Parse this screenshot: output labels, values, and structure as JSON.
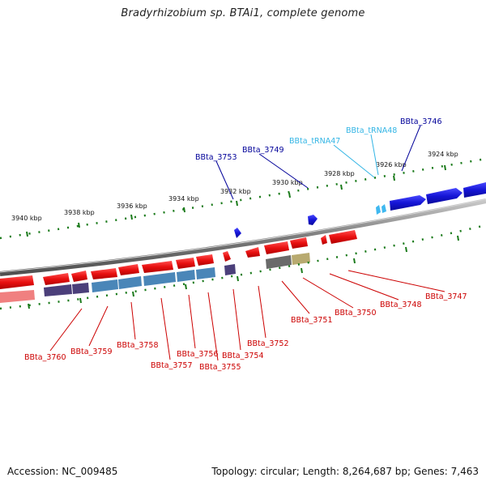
{
  "title": "Bradyrhizobium sp. BTAi1, complete genome",
  "footer": {
    "accession": "Accession: NC_009485",
    "summary": "Topology: circular; Length: 8,264,687 bp; Genes: 7,463"
  },
  "colors": {
    "forward_gene": "#1515d6",
    "reverse_gene": "#e01010",
    "trna": "#3fb8f0",
    "tick": "#1a7a1a",
    "backbone": "#8a8a8a"
  },
  "kbp_ticks": [
    "3940 kbp",
    "3938 kbp",
    "3936 kbp",
    "3934 kbp",
    "3932 kbp",
    "3930 kbp",
    "3928 kbp",
    "3926 kbp",
    "3924 kbp"
  ],
  "top_labels": [
    {
      "text": "BBta_3753",
      "color": "#000099"
    },
    {
      "text": "BBta_3749",
      "color": "#000099"
    },
    {
      "text": "BBta_tRNA47",
      "color": "#33b5e5"
    },
    {
      "text": "BBta_tRNA48",
      "color": "#33b5e5"
    },
    {
      "text": "BBta_3746",
      "color": "#000099"
    }
  ],
  "bottom_labels": [
    {
      "text": "BBta_3760"
    },
    {
      "text": "BBta_3759"
    },
    {
      "text": "BBta_3758"
    },
    {
      "text": "BBta_3757"
    },
    {
      "text": "BBta_3756"
    },
    {
      "text": "BBta_3755"
    },
    {
      "text": "BBta_3754"
    },
    {
      "text": "BBta_3752"
    },
    {
      "text": "BBta_3751"
    },
    {
      "text": "BBta_3750"
    },
    {
      "text": "BBta_3748"
    },
    {
      "text": "BBta_3747"
    }
  ]
}
